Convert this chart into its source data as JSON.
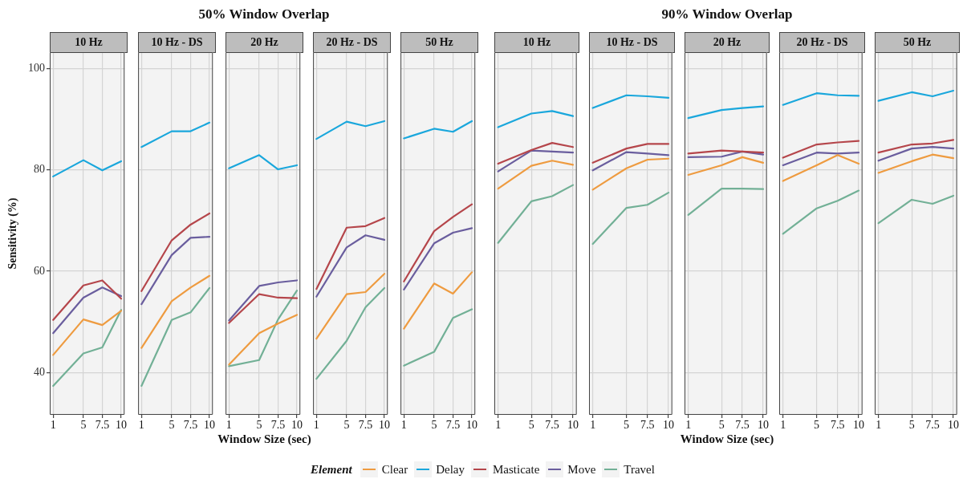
{
  "chart_data": [
    {
      "type": "other",
      "title": "50% Window Overlap"
    },
    {
      "type": "other",
      "title": "90% Window Overlap"
    },
    {
      "type": "line",
      "subtitle": "10 Hz",
      "ylabel": "Sensitivity (%)",
      "legend_title": "Element",
      "legend": "bottom",
      "grid": true,
      "x": [
        1,
        5,
        7.5,
        10
      ],
      "xlim": [
        0.55,
        10.45
      ],
      "xticks": [
        1,
        5,
        7.5,
        10
      ],
      "ylim": [
        31.7,
        103.2
      ],
      "yticks": [
        40,
        60,
        80,
        100
      ],
      "series": [
        {
          "name": "Clear",
          "color": "#ee9b40",
          "values": [
            43.5,
            50.5,
            49.4,
            52.2
          ]
        },
        {
          "name": "Delay",
          "color": "#1aa7dc",
          "values": [
            78.7,
            81.9,
            79.9,
            81.7
          ]
        },
        {
          "name": "Masticate",
          "color": "#b5464b",
          "values": [
            50.4,
            57.2,
            58.2,
            54.6
          ]
        },
        {
          "name": "Move",
          "color": "#6a5e9e",
          "values": [
            47.8,
            54.8,
            56.8,
            55.1
          ]
        },
        {
          "name": "Travel",
          "color": "#72b096",
          "values": [
            37.4,
            43.8,
            45.0,
            52.4
          ]
        }
      ]
    },
    {
      "type": "line",
      "subtitle": "10 Hz - DS",
      "tick_labels": "x",
      "grid": true,
      "x": [
        1,
        5,
        7.5,
        10
      ],
      "xlim": [
        0.55,
        10.45
      ],
      "xticks": [
        1,
        5,
        7.5,
        10
      ],
      "ylim": [
        31.7,
        103.2
      ],
      "yticks": [
        40,
        60,
        80,
        100
      ],
      "series": [
        {
          "color": "#ee9b40",
          "values": [
            44.9,
            54.1,
            56.8,
            59.1
          ]
        },
        {
          "color": "#1aa7dc",
          "values": [
            84.5,
            87.6,
            87.6,
            89.3
          ]
        },
        {
          "color": "#b5464b",
          "values": [
            56.1,
            66.1,
            69.2,
            71.4
          ]
        },
        {
          "color": "#6a5e9e",
          "values": [
            53.5,
            63.2,
            66.6,
            66.8
          ]
        },
        {
          "color": "#72b096",
          "values": [
            37.4,
            50.4,
            51.9,
            56.7
          ]
        }
      ]
    },
    {
      "type": "line",
      "subtitle": "20 Hz",
      "xlabel": "Window Size (sec)",
      "tick_labels": "x",
      "grid": true,
      "x": [
        1,
        5,
        7.5,
        10
      ],
      "xlim": [
        0.55,
        10.45
      ],
      "xticks": [
        1,
        5,
        7.5,
        10
      ],
      "ylim": [
        31.7,
        103.2
      ],
      "yticks": [
        40,
        60,
        80,
        100
      ],
      "series": [
        {
          "color": "#ee9b40",
          "values": [
            41.6,
            47.8,
            49.7,
            51.4
          ]
        },
        {
          "color": "#1aa7dc",
          "values": [
            80.3,
            82.9,
            80.1,
            80.9
          ]
        },
        {
          "color": "#b5464b",
          "values": [
            49.8,
            55.5,
            54.8,
            54.7
          ]
        },
        {
          "color": "#6a5e9e",
          "values": [
            50.3,
            57.1,
            57.8,
            58.2
          ]
        },
        {
          "color": "#72b096",
          "values": [
            41.3,
            42.5,
            50.5,
            56.2
          ]
        }
      ]
    },
    {
      "type": "line",
      "subtitle": "20 Hz - DS",
      "tick_labels": "x",
      "grid": true,
      "x": [
        1,
        5,
        7.5,
        10
      ],
      "xlim": [
        0.55,
        10.45
      ],
      "xticks": [
        1,
        5,
        7.5,
        10
      ],
      "ylim": [
        31.7,
        103.2
      ],
      "yticks": [
        40,
        60,
        80,
        100
      ],
      "series": [
        {
          "color": "#ee9b40",
          "values": [
            46.7,
            55.5,
            55.9,
            59.5
          ]
        },
        {
          "color": "#1aa7dc",
          "values": [
            86.1,
            89.5,
            88.6,
            89.6
          ]
        },
        {
          "color": "#b5464b",
          "values": [
            56.5,
            68.6,
            68.9,
            70.5
          ]
        },
        {
          "color": "#6a5e9e",
          "values": [
            55.0,
            64.7,
            67.1,
            66.2
          ]
        },
        {
          "color": "#72b096",
          "values": [
            38.8,
            46.3,
            52.9,
            56.7
          ]
        }
      ]
    },
    {
      "type": "line",
      "subtitle": "50 Hz",
      "tick_labels": "x",
      "grid": true,
      "x": [
        1,
        5,
        7.5,
        10
      ],
      "xlim": [
        0.55,
        10.45
      ],
      "xticks": [
        1,
        5,
        7.5,
        10
      ],
      "ylim": [
        31.7,
        103.2
      ],
      "yticks": [
        40,
        60,
        80,
        100
      ],
      "series": [
        {
          "color": "#ee9b40",
          "values": [
            48.7,
            57.6,
            55.6,
            59.8
          ]
        },
        {
          "color": "#1aa7dc",
          "values": [
            86.2,
            88.1,
            87.5,
            89.6
          ]
        },
        {
          "color": "#b5464b",
          "values": [
            58.0,
            67.9,
            70.7,
            73.2
          ]
        },
        {
          "color": "#6a5e9e",
          "values": [
            56.4,
            65.5,
            67.6,
            68.5
          ]
        },
        {
          "color": "#72b096",
          "values": [
            41.4,
            44.1,
            50.8,
            52.5
          ]
        }
      ]
    },
    {
      "type": "line",
      "subtitle": "10 Hz",
      "tick_labels": "x",
      "grid": true,
      "x": [
        1,
        5,
        7.5,
        10
      ],
      "xlim": [
        0.55,
        10.45
      ],
      "xticks": [
        1,
        5,
        7.5,
        10
      ],
      "ylim": [
        31.7,
        103.2
      ],
      "yticks": [
        40,
        60,
        80,
        100
      ],
      "series": [
        {
          "color": "#ee9b40",
          "values": [
            76.3,
            80.8,
            81.8,
            81.0
          ]
        },
        {
          "color": "#1aa7dc",
          "values": [
            88.4,
            91.1,
            91.6,
            90.6
          ]
        },
        {
          "color": "#b5464b",
          "values": [
            81.2,
            83.9,
            85.3,
            84.5
          ]
        },
        {
          "color": "#6a5e9e",
          "values": [
            79.7,
            83.8,
            83.6,
            83.4
          ]
        },
        {
          "color": "#72b096",
          "values": [
            65.6,
            73.8,
            74.8,
            77.0
          ]
        }
      ]
    },
    {
      "type": "line",
      "subtitle": "10 Hz - DS",
      "tick_labels": "x",
      "grid": true,
      "x": [
        1,
        5,
        7.5,
        10
      ],
      "xlim": [
        0.55,
        10.45
      ],
      "xticks": [
        1,
        5,
        7.5,
        10
      ],
      "ylim": [
        31.7,
        103.2
      ],
      "yticks": [
        40,
        60,
        80,
        100
      ],
      "series": [
        {
          "color": "#ee9b40",
          "values": [
            76.1,
            80.3,
            82.0,
            82.2
          ]
        },
        {
          "color": "#1aa7dc",
          "values": [
            92.2,
            94.7,
            94.5,
            94.2
          ]
        },
        {
          "color": "#b5464b",
          "values": [
            81.4,
            84.2,
            85.1,
            85.1
          ]
        },
        {
          "color": "#6a5e9e",
          "values": [
            79.9,
            83.5,
            83.2,
            82.9
          ]
        },
        {
          "color": "#72b096",
          "values": [
            65.4,
            72.5,
            73.1,
            75.5
          ]
        }
      ]
    },
    {
      "type": "line",
      "subtitle": "20 Hz",
      "xlabel": "Window Size (sec)",
      "tick_labels": "x",
      "grid": true,
      "x": [
        1,
        5,
        7.5,
        10
      ],
      "xlim": [
        0.55,
        10.45
      ],
      "xticks": [
        1,
        5,
        7.5,
        10
      ],
      "ylim": [
        31.7,
        103.2
      ],
      "yticks": [
        40,
        60,
        80,
        100
      ],
      "series": [
        {
          "color": "#ee9b40",
          "values": [
            79.0,
            80.9,
            82.5,
            81.4
          ]
        },
        {
          "color": "#1aa7dc",
          "values": [
            90.2,
            91.8,
            92.2,
            92.5
          ]
        },
        {
          "color": "#b5464b",
          "values": [
            83.2,
            83.8,
            83.6,
            83.4
          ]
        },
        {
          "color": "#6a5e9e",
          "values": [
            82.5,
            82.6,
            83.6,
            83.0
          ]
        },
        {
          "color": "#72b096",
          "values": [
            71.1,
            76.3,
            76.3,
            76.2
          ]
        }
      ]
    },
    {
      "type": "line",
      "subtitle": "20 Hz - DS",
      "tick_labels": "x",
      "grid": true,
      "x": [
        1,
        5,
        7.5,
        10
      ],
      "xlim": [
        0.55,
        10.45
      ],
      "xticks": [
        1,
        5,
        7.5,
        10
      ],
      "ylim": [
        31.7,
        103.2
      ],
      "yticks": [
        40,
        60,
        80,
        100
      ],
      "series": [
        {
          "color": "#ee9b40",
          "values": [
            77.8,
            80.9,
            82.9,
            81.2
          ]
        },
        {
          "color": "#1aa7dc",
          "values": [
            92.8,
            95.1,
            94.7,
            94.6
          ]
        },
        {
          "color": "#b5464b",
          "values": [
            82.4,
            85.0,
            85.4,
            85.7
          ]
        },
        {
          "color": "#6a5e9e",
          "values": [
            80.9,
            83.4,
            83.2,
            83.4
          ]
        },
        {
          "color": "#72b096",
          "values": [
            67.4,
            72.4,
            73.9,
            75.9
          ]
        }
      ]
    },
    {
      "type": "line",
      "subtitle": "50 Hz",
      "tick_labels": "x",
      "grid": true,
      "x": [
        1,
        5,
        7.5,
        10
      ],
      "xlim": [
        0.55,
        10.45
      ],
      "xticks": [
        1,
        5,
        7.5,
        10
      ],
      "ylim": [
        31.7,
        103.2
      ],
      "yticks": [
        40,
        60,
        80,
        100
      ],
      "series": [
        {
          "color": "#ee9b40",
          "values": [
            79.4,
            81.7,
            83.0,
            82.3
          ]
        },
        {
          "color": "#1aa7dc",
          "values": [
            93.6,
            95.3,
            94.5,
            95.6
          ]
        },
        {
          "color": "#b5464b",
          "values": [
            83.4,
            85.0,
            85.2,
            85.9
          ]
        },
        {
          "color": "#6a5e9e",
          "values": [
            81.8,
            84.2,
            84.5,
            84.2
          ]
        },
        {
          "color": "#72b096",
          "values": [
            69.5,
            74.1,
            73.3,
            74.9
          ]
        }
      ]
    }
  ]
}
